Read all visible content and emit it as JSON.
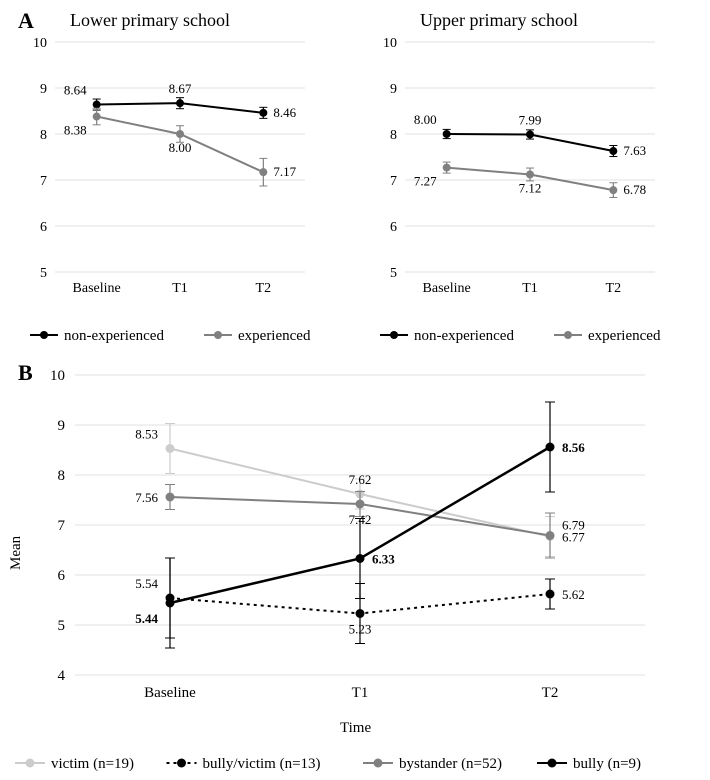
{
  "panelA": {
    "label": "A",
    "left": {
      "title": "Lower primary school",
      "x_categories": [
        "Baseline",
        "T1",
        "T2"
      ],
      "ylim": [
        5,
        10
      ],
      "ytick_step": 1,
      "background_color": "#ffffff",
      "grid_color": "#e0e0e0",
      "axis_color": "#666666",
      "series": [
        {
          "name": "non-experienced",
          "color": "#000000",
          "marker": "circle",
          "line_width": 2,
          "values": [
            8.64,
            8.67,
            8.46
          ],
          "error": [
            0.12,
            0.12,
            0.12
          ],
          "labels": [
            "8.64",
            "8.67",
            "8.46"
          ],
          "label_pos": [
            "above-left",
            "above",
            "right"
          ]
        },
        {
          "name": "experienced",
          "color": "#808080",
          "marker": "circle",
          "line_width": 2,
          "values": [
            8.38,
            8.0,
            7.17
          ],
          "error": [
            0.18,
            0.18,
            0.3
          ],
          "labels": [
            "8.38",
            "8.00",
            "7.17"
          ],
          "label_pos": [
            "below-left",
            "below",
            "right"
          ]
        }
      ]
    },
    "right": {
      "title": "Upper primary school",
      "x_categories": [
        "Baseline",
        "T1",
        "T2"
      ],
      "ylim": [
        5,
        10
      ],
      "ytick_step": 1,
      "background_color": "#ffffff",
      "grid_color": "#e0e0e0",
      "axis_color": "#666666",
      "series": [
        {
          "name": "non-experienced",
          "color": "#000000",
          "marker": "circle",
          "line_width": 2,
          "values": [
            8.0,
            7.99,
            7.63
          ],
          "error": [
            0.1,
            0.1,
            0.12
          ],
          "labels": [
            "8.00",
            "7.99",
            "7.63"
          ],
          "label_pos": [
            "above-left",
            "above",
            "right"
          ]
        },
        {
          "name": "experienced",
          "color": "#808080",
          "marker": "circle",
          "line_width": 2,
          "values": [
            7.27,
            7.12,
            6.78
          ],
          "error": [
            0.12,
            0.14,
            0.16
          ],
          "labels": [
            "7.27",
            "7.12",
            "6.78"
          ],
          "label_pos": [
            "below-left",
            "below",
            "right"
          ]
        }
      ]
    },
    "legend": [
      {
        "label": "non-experienced",
        "color": "#000000"
      },
      {
        "label": "experienced",
        "color": "#808080"
      }
    ]
  },
  "panelB": {
    "label": "B",
    "x_categories": [
      "Baseline",
      "T1",
      "T2"
    ],
    "x_axis_title": "Time",
    "y_axis_title": "Mean",
    "ylim": [
      4,
      10
    ],
    "ytick_step": 1,
    "background_color": "#ffffff",
    "grid_color": "#e0e0e0",
    "axis_color": "#666666",
    "series": [
      {
        "name": "victim (n=19)",
        "color": "#cccccc",
        "marker": "circle",
        "dash": "none",
        "line_width": 2,
        "values": [
          8.53,
          7.62,
          6.77
        ],
        "error": [
          0.5,
          0.3,
          0.4
        ],
        "labels": [
          "8.53",
          "7.62",
          "6.77"
        ],
        "label_pos": [
          "above-left",
          "above",
          "right"
        ],
        "bold": [
          false,
          false,
          false
        ]
      },
      {
        "name": "bully/victim (n=13)",
        "color": "#000000",
        "marker": "circle",
        "dash": "dot",
        "line_width": 2,
        "values": [
          5.54,
          5.23,
          5.62
        ],
        "error": [
          0.8,
          0.6,
          0.3
        ],
        "labels": [
          "5.54",
          "5.23",
          "5.62"
        ],
        "label_pos": [
          "above-left",
          "below",
          "right"
        ],
        "bold": [
          false,
          false,
          false
        ]
      },
      {
        "name": "bystander (n=52)",
        "color": "#808080",
        "marker": "circle",
        "dash": "none",
        "line_width": 2,
        "values": [
          7.56,
          7.42,
          6.79
        ],
        "error": [
          0.25,
          0.25,
          0.45
        ],
        "labels": [
          "7.56",
          "7.42",
          "6.79"
        ],
        "label_pos": [
          "left",
          "below",
          "right-above"
        ],
        "bold": [
          false,
          false,
          false
        ]
      },
      {
        "name": "bully (n=9)",
        "color": "#000000",
        "marker": "circle",
        "dash": "none",
        "line_width": 2.5,
        "values": [
          5.44,
          6.33,
          8.56
        ],
        "error": [
          0.9,
          0.8,
          0.9
        ],
        "labels": [
          "5.44",
          "6.33",
          "8.56"
        ],
        "label_pos": [
          "below-left",
          "right",
          "right"
        ],
        "bold": [
          true,
          true,
          true
        ]
      }
    ],
    "legend": [
      {
        "label": "victim (n=19)",
        "color": "#cccccc",
        "dash": "none"
      },
      {
        "label": "bully/victim (n=13)",
        "color": "#000000",
        "dash": "dot"
      },
      {
        "label": "bystander (n=52)",
        "color": "#808080",
        "dash": "none"
      },
      {
        "label": "bully (n=9)",
        "color": "#000000",
        "dash": "none"
      }
    ]
  }
}
